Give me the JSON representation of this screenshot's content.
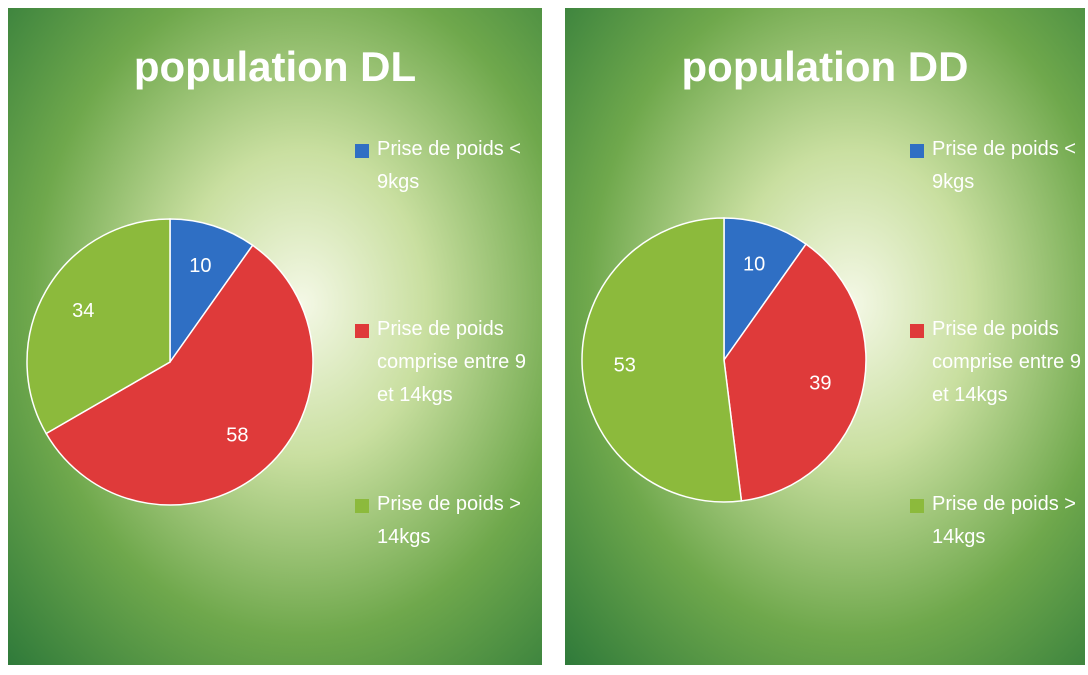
{
  "chart_data": [
    {
      "type": "pie",
      "title": "population DL",
      "categories": [
        "Prise de poids < 9kgs",
        "Prise de poids comprise entre 9 et 14kgs",
        "Prise de poids > 14kgs"
      ],
      "values": [
        10,
        58,
        34
      ],
      "colors": [
        "#2f6fc4",
        "#df3a3a",
        "#8cba3c"
      ]
    },
    {
      "type": "pie",
      "title": "population DD",
      "categories": [
        "Prise de poids < 9kgs",
        "Prise de poids comprise entre 9 et 14kgs",
        "Prise de poids > 14kgs"
      ],
      "values": [
        10,
        39,
        53
      ],
      "colors": [
        "#2f6fc4",
        "#df3a3a",
        "#8cba3c"
      ]
    }
  ]
}
